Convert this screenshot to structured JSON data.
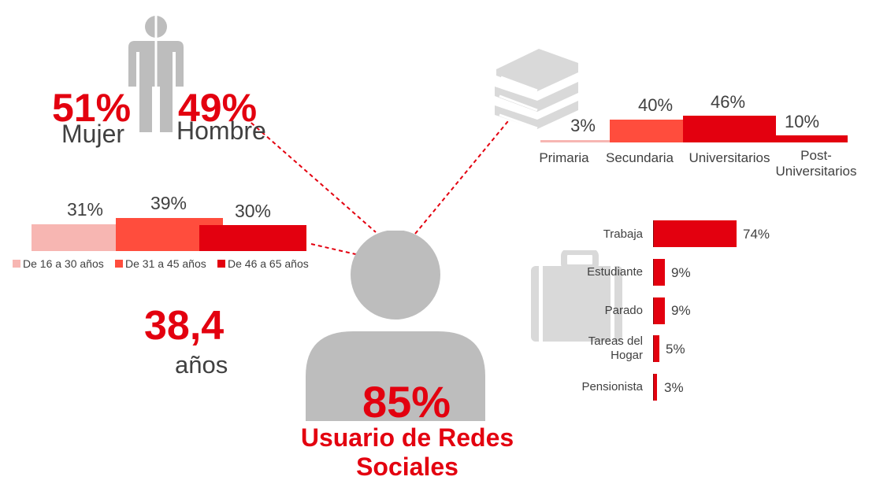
{
  "gender": {
    "female_pct": "51%",
    "female_label": "Mujer",
    "male_pct": "49%",
    "male_label": "Hombre",
    "icon": "person-gender-icon"
  },
  "age_groups": {
    "values": [
      "31%",
      "39%",
      "30%"
    ],
    "legend": [
      "De 16 a 30 años",
      "De 31 a 45 años",
      "De 46 a 65 años"
    ],
    "colors": [
      "#f7b6b2",
      "#ff4d3d",
      "#e3000f"
    ]
  },
  "average_age": {
    "value": "38,4",
    "unit": "años"
  },
  "center": {
    "value": "85%",
    "title_line1": "Usuario de Redes",
    "title_line2": "Sociales",
    "icon": "user-icon"
  },
  "education": {
    "icon": "books-icon",
    "values": [
      "3%",
      "40%",
      "46%",
      "10%"
    ],
    "labels": [
      "Primaria",
      "Secundaria",
      "Universitarios",
      "Post-",
      "Universitarios"
    ],
    "colors": [
      "#f7b6b2",
      "#ff4d3d",
      "#e3000f",
      "#e3000f"
    ]
  },
  "employment": {
    "icon": "briefcase-icon",
    "labels": [
      "Trabaja",
      "Estudiante",
      "Parado",
      "Tareas del",
      "Hogar",
      "Pensionista"
    ],
    "values": [
      "74%",
      "9%",
      "9%",
      "5%",
      "3%"
    ]
  },
  "chart_data": [
    {
      "type": "bar",
      "title": "",
      "categories": [
        "De 16 a 30 años",
        "De 31 a 45 años",
        "De 46 a 65 años"
      ],
      "values": [
        31,
        39,
        30
      ]
    },
    {
      "type": "bar",
      "title": "",
      "categories": [
        "Primaria",
        "Secundaria",
        "Universitarios",
        "Post-Universitarios"
      ],
      "values": [
        3,
        40,
        46,
        10
      ]
    },
    {
      "type": "bar",
      "title": "",
      "categories": [
        "Trabaja",
        "Estudiante",
        "Parado",
        "Tareas del Hogar",
        "Pensionista"
      ],
      "values": [
        74,
        9,
        9,
        5,
        3
      ]
    },
    {
      "type": "table",
      "title": "",
      "categories": [
        "Mujer",
        "Hombre"
      ],
      "values": [
        51,
        49
      ]
    }
  ]
}
